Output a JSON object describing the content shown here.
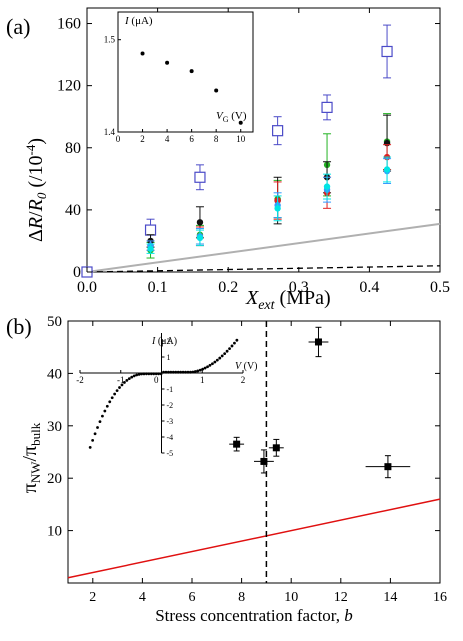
{
  "chart_data": [
    {
      "panel_label": "(a)",
      "type": "scatter",
      "xlabel": "X_ext (MPa)",
      "xlabel_main": "X",
      "xlabel_sub": "ext",
      "xlabel_unit": " (MPa)",
      "ylabel": "ΔR/R0 (/10^-4)",
      "xlim": [
        0,
        0.5
      ],
      "ylim": [
        0,
        170
      ],
      "xticks": [
        0.0,
        0.1,
        0.2,
        0.3,
        0.4,
        0.5
      ],
      "xtick_labels": [
        "0.0",
        "0.1",
        "0.2",
        "0.3",
        "0.4",
        "0.5"
      ],
      "yticks": [
        0,
        40,
        80,
        120,
        160
      ],
      "ytick_labels": [
        "0",
        "40",
        "80",
        "120",
        "160"
      ],
      "series": [
        {
          "color": "#4b4bc8",
          "marker": "open-square",
          "x": [
            0.0,
            0.09,
            0.16,
            0.27,
            0.34,
            0.425
          ],
          "y": [
            0,
            27,
            61,
            91,
            106,
            142
          ],
          "err": [
            0,
            7,
            8,
            9,
            8,
            17
          ]
        },
        {
          "color": "#22b322",
          "marker": "circle",
          "x": [
            0.09,
            0.16,
            0.27,
            0.34,
            0.425
          ],
          "y": [
            14,
            24,
            47,
            69,
            84
          ],
          "err": [
            5,
            6,
            12,
            20,
            18
          ]
        },
        {
          "color": "#111111",
          "marker": "circle",
          "x": [
            0.09,
            0.16,
            0.27,
            0.34,
            0.425
          ],
          "y": [
            20,
            32,
            46,
            61,
            83
          ],
          "err": [
            4,
            10,
            15,
            10,
            18
          ]
        },
        {
          "color": "#e02020",
          "marker": "circle",
          "x": [
            0.09,
            0.16,
            0.27,
            0.34,
            0.425
          ],
          "y": [
            17,
            23,
            46,
            51,
            74
          ],
          "err": [
            3,
            6,
            12,
            10,
            8
          ]
        },
        {
          "color": "#3399ff",
          "marker": "circle",
          "x": [
            0.09,
            0.16,
            0.27,
            0.34,
            0.425
          ],
          "y": [
            17,
            23,
            43,
            53,
            65
          ],
          "err": [
            3,
            5,
            8,
            8,
            8
          ]
        },
        {
          "color": "#00e5e5",
          "marker": "circle",
          "x": [
            0.09,
            0.16,
            0.27,
            0.34,
            0.425
          ],
          "y": [
            15,
            22,
            41,
            55,
            66
          ],
          "err": [
            3,
            5,
            8,
            8,
            8
          ]
        }
      ],
      "lines": [
        {
          "style": "solid",
          "color": "#b0b0b0",
          "x": [
            0,
            0.5
          ],
          "y": [
            0,
            31
          ]
        },
        {
          "style": "dashed",
          "color": "#000000",
          "x": [
            0,
            0.5
          ],
          "y": [
            0,
            4
          ]
        }
      ],
      "inset": {
        "type": "scatter",
        "ylabel": "I (μA)",
        "xlabel": "VG (V)",
        "xlim": [
          0,
          11
        ],
        "ylim": [
          1.4,
          1.53
        ],
        "xticks": [
          0,
          2,
          4,
          6,
          8,
          10
        ],
        "xtick_labels": [
          "0",
          "2",
          "4",
          "6",
          "8",
          "10"
        ],
        "yticks": [
          1.4,
          1.5
        ],
        "ytick_labels": [
          "1.4",
          "1.5"
        ],
        "x": [
          2,
          4,
          6,
          8,
          10
        ],
        "y": [
          1.485,
          1.475,
          1.466,
          1.445,
          1.41
        ]
      }
    },
    {
      "panel_label": "(b)",
      "type": "scatter",
      "xlabel": "Stress concentration factor, b",
      "xlabel_main": "Stress concentration factor, ",
      "xlabel_var": "b",
      "ylabel": "πNW/πbulk",
      "xlim": [
        1,
        16
      ],
      "ylim": [
        0,
        50
      ],
      "xticks": [
        2,
        4,
        6,
        8,
        10,
        12,
        14,
        16
      ],
      "xtick_labels": [
        "2",
        "4",
        "6",
        "8",
        "10",
        "12",
        "14",
        "16"
      ],
      "yticks": [
        10,
        20,
        30,
        40,
        50
      ],
      "ytick_labels": [
        "10",
        "20",
        "30",
        "40",
        "50"
      ],
      "points": [
        {
          "x": 7.8,
          "y": 26.5,
          "xerr": 0.3,
          "yerr": 1.3
        },
        {
          "x": 8.9,
          "y": 23.2,
          "xerr": 0.4,
          "yerr": 2.2
        },
        {
          "x": 9.4,
          "y": 25.8,
          "xerr": 0.3,
          "yerr": 1.6
        },
        {
          "x": 11.1,
          "y": 46.0,
          "xerr": 0.4,
          "yerr": 2.8
        },
        {
          "x": 13.9,
          "y": 22.2,
          "xerr": 0.9,
          "yerr": 2.1
        }
      ],
      "line": {
        "color": "#e01010",
        "x": [
          1,
          16
        ],
        "y": [
          1,
          16
        ]
      },
      "vline": {
        "x": 9.0,
        "style": "dashed"
      },
      "inset": {
        "type": "line",
        "ylabel": "I (μA)",
        "xlabel": "V (V)",
        "xlim": [
          -2,
          2
        ],
        "ylim": [
          -5,
          2.5
        ],
        "xticks": [
          -2,
          -1,
          0,
          1,
          2
        ],
        "xtick_labels": [
          "-2",
          "-1",
          "0",
          "1",
          "2"
        ],
        "yticks": [
          -5,
          -4,
          -3,
          -2,
          -1,
          1,
          2
        ],
        "ytick_labels": [
          "-5",
          "-4",
          "-3",
          "-2",
          "-1",
          "1",
          "2"
        ]
      }
    }
  ]
}
